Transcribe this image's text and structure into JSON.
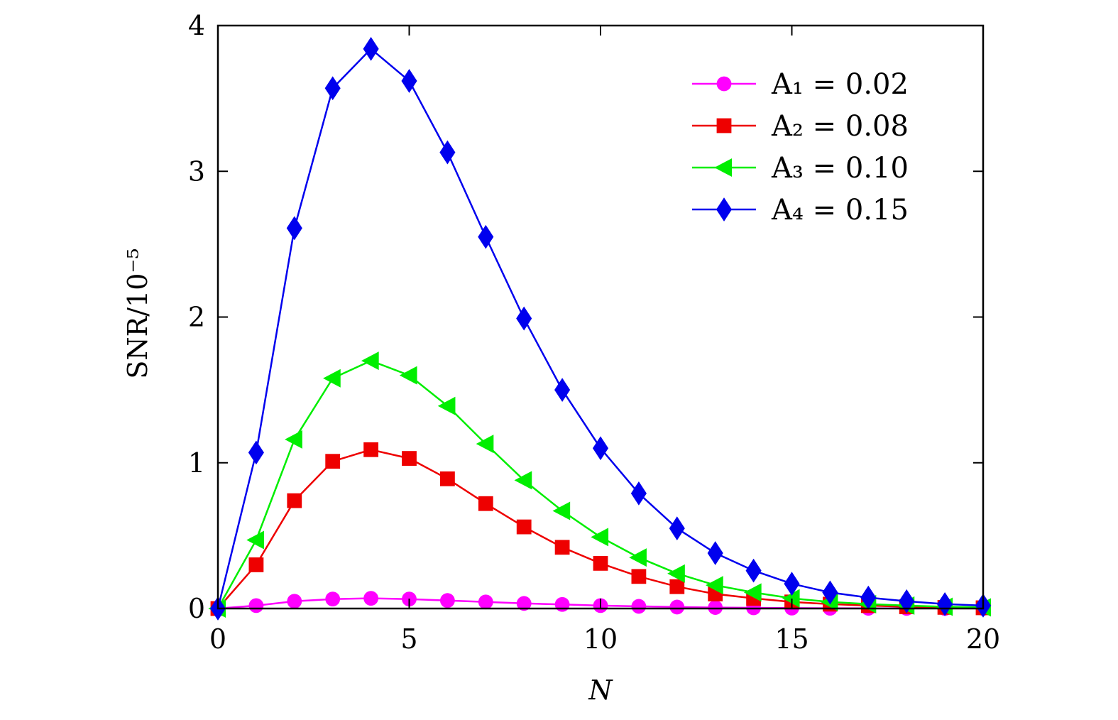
{
  "chart_data": {
    "type": "line",
    "xlabel": "N",
    "ylabel": "SNR/10⁻⁵",
    "xlim": [
      0,
      20
    ],
    "ylim": [
      0,
      4
    ],
    "x_ticks": [
      "0",
      "5",
      "10",
      "15",
      "20"
    ],
    "y_ticks": [
      "0",
      "1",
      "2",
      "3",
      "4"
    ],
    "grid": false,
    "legend_position": "top-right",
    "x": [
      0,
      1,
      2,
      3,
      4,
      5,
      6,
      7,
      8,
      9,
      10,
      11,
      12,
      13,
      14,
      15,
      16,
      17,
      18,
      19,
      20
    ],
    "series": [
      {
        "name": "A₁ = 0.02",
        "color": "#ff00ff",
        "marker": "circle",
        "values": [
          0,
          0.02,
          0.05,
          0.065,
          0.07,
          0.065,
          0.055,
          0.045,
          0.035,
          0.028,
          0.02,
          0.015,
          0.01,
          0.007,
          0.005,
          0.003,
          0.002,
          0.0015,
          0.001,
          0.0008,
          0.0005
        ]
      },
      {
        "name": "A₂ = 0.08",
        "color": "#ee0000",
        "marker": "square",
        "values": [
          0,
          0.3,
          0.74,
          1.01,
          1.09,
          1.03,
          0.89,
          0.72,
          0.56,
          0.42,
          0.31,
          0.22,
          0.15,
          0.1,
          0.07,
          0.045,
          0.03,
          0.02,
          0.012,
          0.008,
          0.005
        ]
      },
      {
        "name": "A₃ = 0.10",
        "color": "#00ee00",
        "marker": "triangle-left",
        "values": [
          0,
          0.47,
          1.16,
          1.58,
          1.7,
          1.6,
          1.39,
          1.13,
          0.88,
          0.67,
          0.49,
          0.35,
          0.24,
          0.16,
          0.11,
          0.07,
          0.045,
          0.03,
          0.02,
          0.012,
          0.008
        ]
      },
      {
        "name": "A₄ = 0.15",
        "color": "#0000ee",
        "marker": "diamond",
        "values": [
          0,
          1.07,
          2.61,
          3.57,
          3.84,
          3.62,
          3.13,
          2.55,
          1.99,
          1.5,
          1.1,
          0.79,
          0.55,
          0.38,
          0.26,
          0.17,
          0.11,
          0.075,
          0.05,
          0.03,
          0.02
        ]
      }
    ]
  }
}
